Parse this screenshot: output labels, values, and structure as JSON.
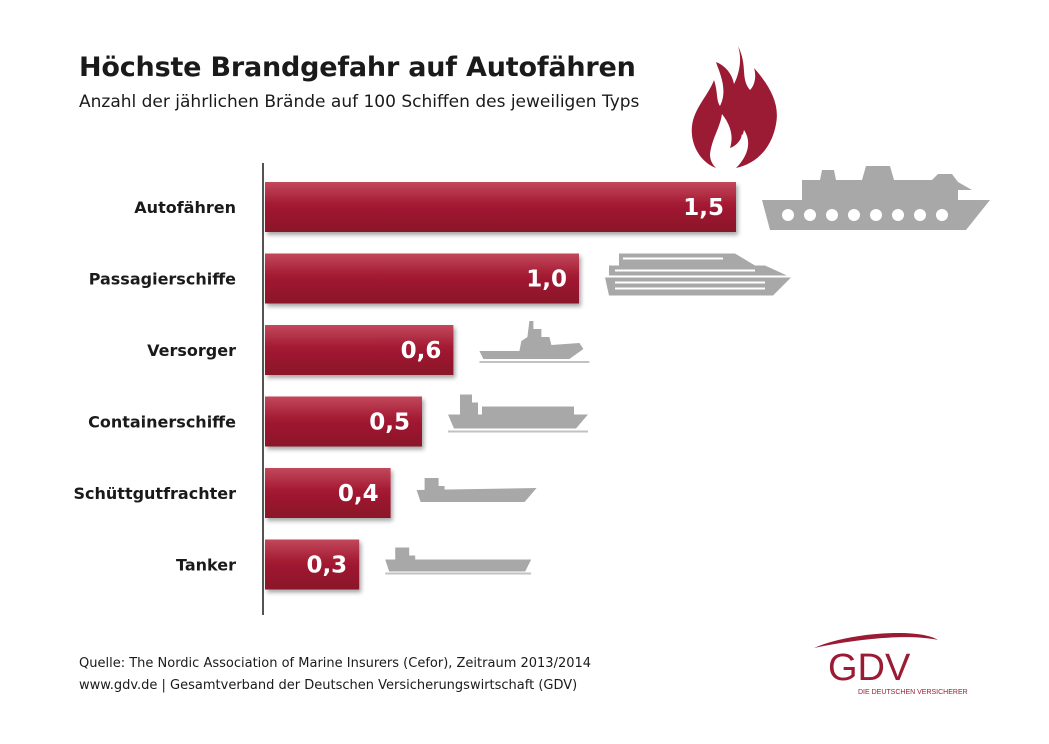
{
  "header": {
    "title": "Höchste Brandgefahr auf Autofähren",
    "subtitle": "Anzahl der jährlichen Brände auf 100 Schiffen des jeweiligen Typs"
  },
  "chart_data": {
    "type": "bar",
    "orientation": "horizontal",
    "title": "Höchste Brandgefahr auf Autofähren",
    "subtitle": "Anzahl der jährlichen Brände auf 100 Schiffen des jeweiligen Typs",
    "categories": [
      "Autofähren",
      "Passagierschiffe",
      "Versorger",
      "Containerschiffe",
      "Schüttgutfrachter",
      "Tanker"
    ],
    "values": [
      1.5,
      1.0,
      0.6,
      0.5,
      0.4,
      0.3
    ],
    "value_labels": [
      "1,5",
      "1,0",
      "0,6",
      "0,5",
      "0,4",
      "0,3"
    ],
    "ship_icons": [
      "car-ferry-icon",
      "cruise-ship-icon",
      "supply-vessel-icon",
      "container-ship-icon",
      "bulk-carrier-icon",
      "tanker-icon"
    ],
    "xlim": [
      0,
      1.6
    ],
    "grid": false,
    "colors": {
      "bar": "#a31a32",
      "icon": "#a8a8a8",
      "axis": "#1a1a1a"
    }
  },
  "footer": {
    "source_line": "Quelle: The Nordic Association of Marine Insurers (Cefor), Zeitraum 2013/2014",
    "publisher_line": "www.gdv.de | Gesamtverband der Deutschen Versicherungswirtschaft (GDV)"
  },
  "logo": {
    "name": "GDV",
    "tagline": "DIE DEUTSCHEN VERSICHERER",
    "color": "#9b1b34"
  },
  "decoration": {
    "flame_icon": "flame-icon"
  }
}
